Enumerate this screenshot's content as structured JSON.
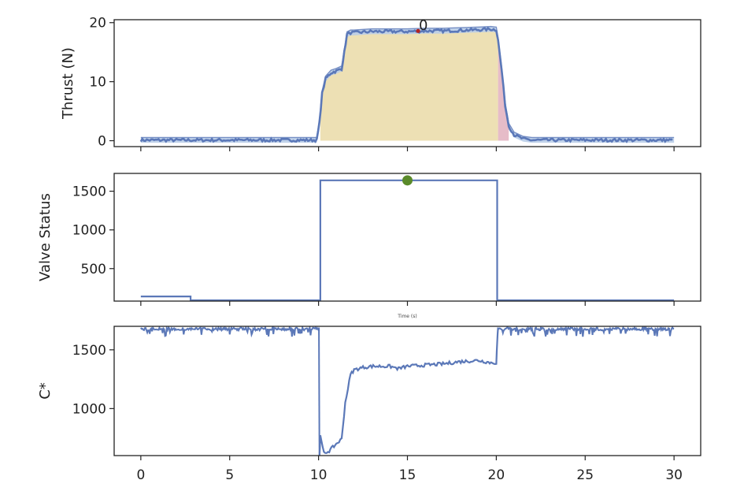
{
  "chart_data": [
    {
      "type": "line",
      "ylabel": "Thrust (N)",
      "xlim": [
        -1.5,
        31.5
      ],
      "ylim": [
        -1,
        20.5
      ],
      "yticks": [
        0,
        10,
        20
      ],
      "xticks": [
        0,
        5,
        10,
        15,
        20,
        25,
        30
      ],
      "show_xtick_labels": false,
      "series_color": "#5b78b8",
      "band_color": "#b9cde8",
      "fill_burn_color": "#ede0b4",
      "fill_tail_color": "#e6bcc8",
      "burn_window": [
        10.1,
        20.1
      ],
      "tail_window": [
        20.1,
        20.7
      ],
      "series": [
        {
          "x": [
            0,
            2,
            4,
            6,
            8,
            9.9,
            10.05,
            10.2,
            10.4,
            10.7,
            11,
            11.3,
            11.45,
            11.6,
            11.8,
            12,
            12.5,
            13,
            14,
            15,
            16,
            17,
            18,
            19,
            19.7,
            20,
            20.1,
            20.3,
            20.5,
            20.7,
            21,
            21.5,
            22,
            24,
            26,
            28,
            30
          ],
          "values": [
            0.1,
            0.1,
            0.1,
            0.1,
            0.1,
            0.1,
            3,
            8,
            10.5,
            11.5,
            11.8,
            12.2,
            15,
            18,
            18.3,
            18.3,
            18.4,
            18.5,
            18.5,
            18.5,
            18.6,
            18.6,
            18.7,
            18.8,
            18.9,
            18.8,
            17,
            12,
            6,
            2.5,
            1,
            0.3,
            0.1,
            0.1,
            0.1,
            0.1,
            0.1
          ]
        }
      ],
      "annotation": {
        "text": "0",
        "x": 15.6,
        "y": 18.6,
        "marker_color": "#b22222"
      }
    },
    {
      "type": "line",
      "ylabel": "Valve Status",
      "xlim": [
        -1.5,
        31.5
      ],
      "ylim": [
        80,
        1730
      ],
      "yticks": [
        500,
        1000,
        1500
      ],
      "xticks": [
        0,
        5,
        10,
        15,
        20,
        25,
        30
      ],
      "show_xtick_labels": false,
      "xlabel_small": "Time (s)",
      "series_color": "#5b78b8",
      "series": [
        {
          "x": [
            0,
            2.8,
            2.8,
            10.1,
            10.1,
            20.05,
            20.05,
            30
          ],
          "values": [
            140,
            140,
            90,
            90,
            1640,
            1640,
            90,
            90
          ]
        }
      ],
      "marker": {
        "x": 15,
        "y": 1640,
        "color": "#5a8a2a"
      }
    },
    {
      "type": "line",
      "ylabel": "C*",
      "xlim": [
        -1.5,
        31.5
      ],
      "ylim": [
        600,
        1700
      ],
      "yticks": [
        1000,
        1500
      ],
      "xticks": [
        0,
        5,
        10,
        15,
        20,
        25,
        30
      ],
      "xtick_labels": [
        "0",
        "5",
        "10",
        "15",
        "20",
        "25",
        "30"
      ],
      "series_color": "#5b78b8",
      "series": [
        {
          "x": [
            10.05,
            10.1,
            10.3,
            10.6,
            11,
            11.3,
            11.5,
            11.8,
            12,
            12.5,
            13,
            14,
            14.5,
            15,
            16,
            17,
            18,
            19,
            19.7,
            20,
            20.05,
            20.1
          ],
          "values": [
            600,
            760,
            620,
            640,
            700,
            740,
            1050,
            1290,
            1330,
            1350,
            1360,
            1360,
            1340,
            1360,
            1370,
            1380,
            1400,
            1410,
            1390,
            1390,
            1560,
            1690
          ]
        }
      ],
      "noise_segments": [
        [
          0,
          10.05
        ],
        [
          20.1,
          30
        ]
      ],
      "noise_top": 1690
    }
  ]
}
